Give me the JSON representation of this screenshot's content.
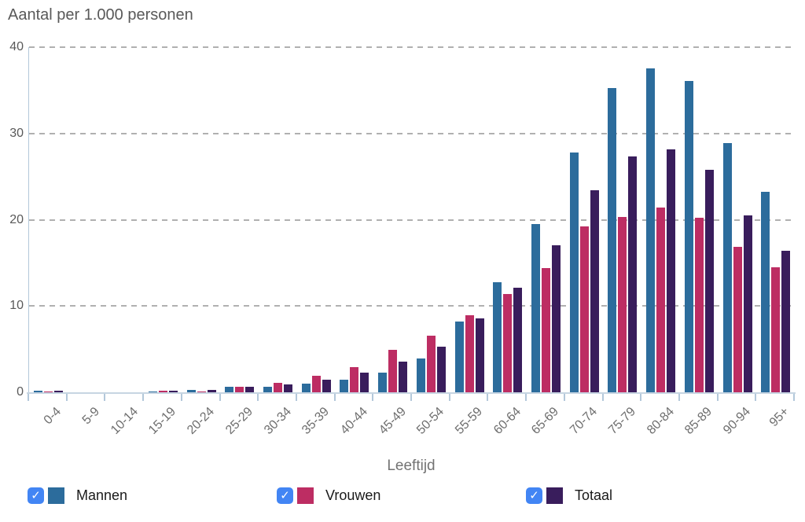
{
  "title": "Aantal per 1.000 personen",
  "x_axis_title": "Leeftijd",
  "legend": {
    "items": [
      {
        "label": "Mannen",
        "checked": true
      },
      {
        "label": "Vrouwen",
        "checked": true
      },
      {
        "label": "Totaal",
        "checked": true
      }
    ],
    "checkmark": "✓"
  },
  "colors": {
    "mannen": "#2c6c9c",
    "vrouwen": "#bd2d63",
    "totaal": "#391d5c",
    "checkbox_blue": "#4285f4",
    "axis_line": "#b3c8da",
    "baseline": "#c7d5e2",
    "gridline": "#b0b0b0",
    "title_text": "#595959",
    "axis_text": "#6e6e6e",
    "legend_text": "#1a1a1a"
  },
  "chart_data": {
    "type": "bar",
    "title": "Aantal per 1.000 personen",
    "xlabel": "Leeftijd",
    "ylabel": "Aantal per 1.000 personen",
    "ylim": [
      0,
      40
    ],
    "ytick_step": 10,
    "yticks": [
      0,
      10,
      20,
      30,
      40
    ],
    "grid": "horizontal-dashed",
    "legend_position": "bottom",
    "categories": [
      "0-4",
      "5-9",
      "10-14",
      "15-19",
      "20-24",
      "25-29",
      "30-34",
      "35-39",
      "40-44",
      "45-49",
      "50-54",
      "55-59",
      "60-64",
      "65-69",
      "70-74",
      "75-79",
      "80-84",
      "85-89",
      "90-94",
      "95+"
    ],
    "series": [
      {
        "name": "Mannen",
        "color": "#2c6c9c",
        "checked": true,
        "values": [
          0.2,
          0,
          0,
          0.05,
          0.3,
          0.6,
          0.6,
          1.0,
          1.5,
          2.3,
          3.9,
          8.2,
          12.8,
          19.5,
          27.8,
          35.3,
          37.5,
          36.1,
          28.9,
          23.2
        ]
      },
      {
        "name": "Vrouwen",
        "color": "#bd2d63",
        "checked": true,
        "values": [
          0.1,
          0,
          0,
          0.2,
          0.1,
          0.6,
          1.1,
          1.9,
          2.9,
          4.9,
          6.6,
          8.9,
          11.4,
          14.4,
          19.2,
          20.3,
          21.4,
          20.2,
          16.9,
          14.5
        ]
      },
      {
        "name": "Totaal",
        "color": "#391d5c",
        "checked": true,
        "values": [
          0.2,
          0,
          0,
          0.2,
          0.3,
          0.6,
          0.9,
          1.5,
          2.3,
          3.6,
          5.3,
          8.6,
          12.1,
          17.0,
          23.4,
          27.3,
          28.2,
          25.8,
          20.5,
          16.4
        ]
      }
    ]
  }
}
